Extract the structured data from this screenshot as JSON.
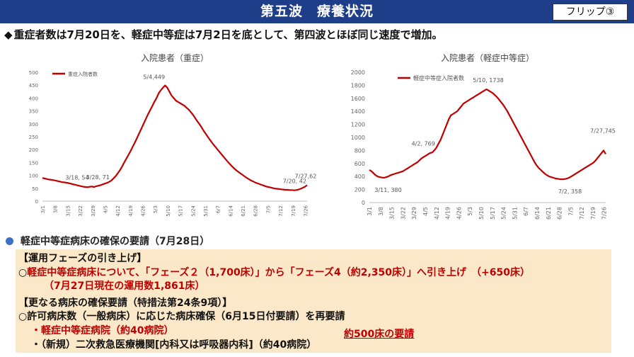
{
  "header": {
    "title": "第五波　療養状況",
    "flip_label": "フリップ③"
  },
  "headline": {
    "bullet": "◆",
    "text": "重症者数は7月20日を、軽症中等症は7月2日を底として、第四波とほぼ同じ速度で増加。"
  },
  "colors": {
    "header_bg": "#1f3e8a",
    "line": "#c00000",
    "panel_bg": "#fbe8c8",
    "accent_red": "#c00000",
    "arrow": "#e07b20",
    "section_dot": "#3b6fc8"
  },
  "chart_data": [
    {
      "type": "line",
      "title": "入院患者（重症）",
      "legend": "重症入院者数",
      "legend_position": "top-left",
      "ylim": [
        0,
        500
      ],
      "yticks": [
        0,
        50,
        100,
        150,
        200,
        250,
        300,
        350,
        400,
        450,
        500
      ],
      "xticks": [
        "3/1",
        "3/8",
        "3/15",
        "3/22",
        "3/29",
        "4/5",
        "4/12",
        "4/19",
        "4/26",
        "5/3",
        "5/10",
        "5/17",
        "5/24",
        "5/31",
        "6/7",
        "6/14",
        "6/21",
        "6/28",
        "7/5",
        "7/12",
        "7/19",
        "7/26"
      ],
      "series": [
        {
          "name": "重症入院者数",
          "x_start": "3/1",
          "values": [
            90,
            88,
            86,
            84,
            83,
            82,
            80,
            78,
            76,
            74,
            73,
            72,
            70,
            68,
            66,
            64,
            62,
            60,
            58,
            56,
            55,
            54,
            56,
            57,
            55,
            58,
            60,
            62,
            65,
            68,
            71,
            75,
            80,
            88,
            97,
            108,
            120,
            134,
            150,
            165,
            180,
            195,
            212,
            228,
            246,
            264,
            282,
            300,
            318,
            336,
            352,
            368,
            385,
            400,
            418,
            430,
            440,
            449,
            440,
            425,
            410,
            400,
            390,
            385,
            380,
            375,
            370,
            362,
            355,
            345,
            335,
            322,
            310,
            298,
            286,
            272,
            260,
            248,
            236,
            225,
            214,
            204,
            194,
            184,
            174,
            164,
            154,
            145,
            136,
            128,
            120,
            114,
            108,
            102,
            96,
            90,
            85,
            80,
            76,
            72,
            69,
            66,
            63,
            60,
            57,
            55,
            53,
            51,
            49,
            48,
            47,
            46,
            45,
            44,
            44,
            43,
            43,
            42,
            43,
            45,
            48,
            52,
            56,
            62
          ]
        }
      ],
      "annotations": [
        {
          "label": "3/18, 54",
          "x": "3/18",
          "y": 54
        },
        {
          "label": "3/28, 71",
          "x": "3/28",
          "y": 71
        },
        {
          "label": "5/4,449",
          "x": "5/4",
          "y": 449
        },
        {
          "label": "7/20, 42",
          "x": "7/20",
          "y": 42
        },
        {
          "label": "7/27,62",
          "x": "7/27",
          "y": 62
        }
      ],
      "grid": false
    },
    {
      "type": "line",
      "title": "入院患者（軽症中等症）",
      "legend": "軽症中等症入院者数",
      "legend_position": "top-left",
      "ylim": [
        0,
        2000
      ],
      "yticks": [
        0,
        200,
        400,
        600,
        800,
        1000,
        1200,
        1400,
        1600,
        1800,
        2000
      ],
      "xticks": [
        "3/1",
        "3/8",
        "3/15",
        "3/22",
        "3/29",
        "4/5",
        "4/12",
        "4/19",
        "4/26",
        "5/3",
        "5/10",
        "5/17",
        "5/24",
        "5/31",
        "6/7",
        "6/14",
        "6/21",
        "6/28",
        "7/5",
        "7/12",
        "7/19",
        "7/26"
      ],
      "series": [
        {
          "name": "軽症中等症入院者数",
          "x_start": "3/1",
          "values": [
            500,
            480,
            450,
            420,
            400,
            390,
            385,
            380,
            390,
            400,
            420,
            430,
            440,
            450,
            460,
            470,
            480,
            500,
            520,
            540,
            560,
            580,
            600,
            620,
            650,
            680,
            700,
            720,
            740,
            760,
            769,
            800,
            840,
            900,
            960,
            1040,
            1120,
            1200,
            1280,
            1340,
            1360,
            1380,
            1400,
            1440,
            1480,
            1520,
            1540,
            1560,
            1580,
            1600,
            1620,
            1640,
            1660,
            1680,
            1700,
            1720,
            1738,
            1720,
            1700,
            1680,
            1650,
            1620,
            1580,
            1540,
            1500,
            1450,
            1400,
            1340,
            1280,
            1220,
            1160,
            1100,
            1040,
            980,
            920,
            860,
            800,
            740,
            680,
            620,
            570,
            530,
            500,
            470,
            440,
            420,
            400,
            390,
            380,
            370,
            365,
            360,
            358,
            360,
            365,
            375,
            390,
            410,
            430,
            450,
            470,
            490,
            510,
            530,
            550,
            570,
            590,
            610,
            640,
            680,
            720,
            760,
            800,
            745
          ]
        }
      ],
      "annotations": [
        {
          "label": "3/11, 380",
          "x": "3/11",
          "y": 380
        },
        {
          "label": "4/2, 769",
          "x": "4/2",
          "y": 769
        },
        {
          "label": "5/10, 1738",
          "x": "5/10",
          "y": 1738
        },
        {
          "label": "7/2, 358",
          "x": "7/2",
          "y": 358
        },
        {
          "label": "7/27,745",
          "x": "7/27",
          "y": 745
        }
      ],
      "grid": false
    }
  ],
  "section": {
    "title": "軽症中等症病床の確保の要請（7月28日）"
  },
  "panel": {
    "phase_heading": "【運用フェーズの引き上げ】",
    "phase_line1_mark": "○",
    "phase_line1": "軽症中等症病床について、「フェーズ２（1,700床）」から「フェーズ4（約2,350床）」へ引き上げ　（+650床）",
    "phase_line2": "（7月27日現在の運用数1,861床）",
    "law_heading": "【更なる病床の確保要請（特措法第24条9項）】",
    "law_line1": "○許可病床数（一般病床）に応じた病床確保（6月15日付要請）を再要請",
    "law_item1": "・軽症中等症病院（約40病院）",
    "law_item2": "・（新規）二次救急医療機関[内科又は呼吸器内科]（約40病院）",
    "request": "約500床の要請"
  }
}
